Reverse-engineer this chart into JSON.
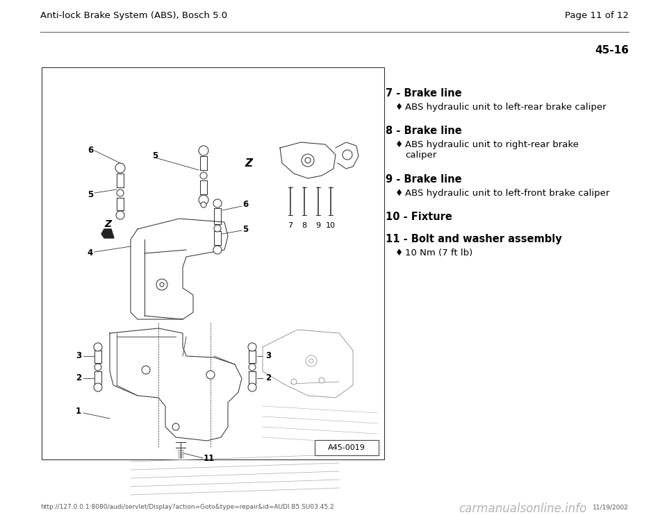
{
  "bg_color": "#ffffff",
  "header_title": "Anti-lock Brake System (ABS), Bosch 5.0",
  "header_page": "Page 11 of 12",
  "section_number": "45-16",
  "footer_url": "http://127.0.0.1:8080/audi/servlet/Display?action=Goto&type=repair&id=AUDI.B5.SU03.45.2",
  "footer_date": "11/19/2002",
  "footer_watermark": "carmanualsonline.info",
  "diagram_label": "A45-0019",
  "items": [
    {
      "number": "7",
      "label": "Brake line",
      "sub": [
        "ABS hydraulic unit to left-rear brake caliper"
      ]
    },
    {
      "number": "8",
      "label": "Brake line",
      "sub": [
        "ABS hydraulic unit to right-rear brake\ncaliper"
      ]
    },
    {
      "number": "9",
      "label": "Brake line",
      "sub": [
        "ABS hydraulic unit to left-front brake caliper"
      ]
    },
    {
      "number": "10",
      "label": "Fixture",
      "sub": []
    },
    {
      "number": "11",
      "label": "Bolt and washer assembly",
      "sub": [
        "10 Nm (7 ft lb)"
      ]
    }
  ],
  "header_font_size": 9.5,
  "item_font_size": 10.5,
  "sub_font_size": 9.5,
  "text_color": "#000000",
  "line_color": "#333333"
}
